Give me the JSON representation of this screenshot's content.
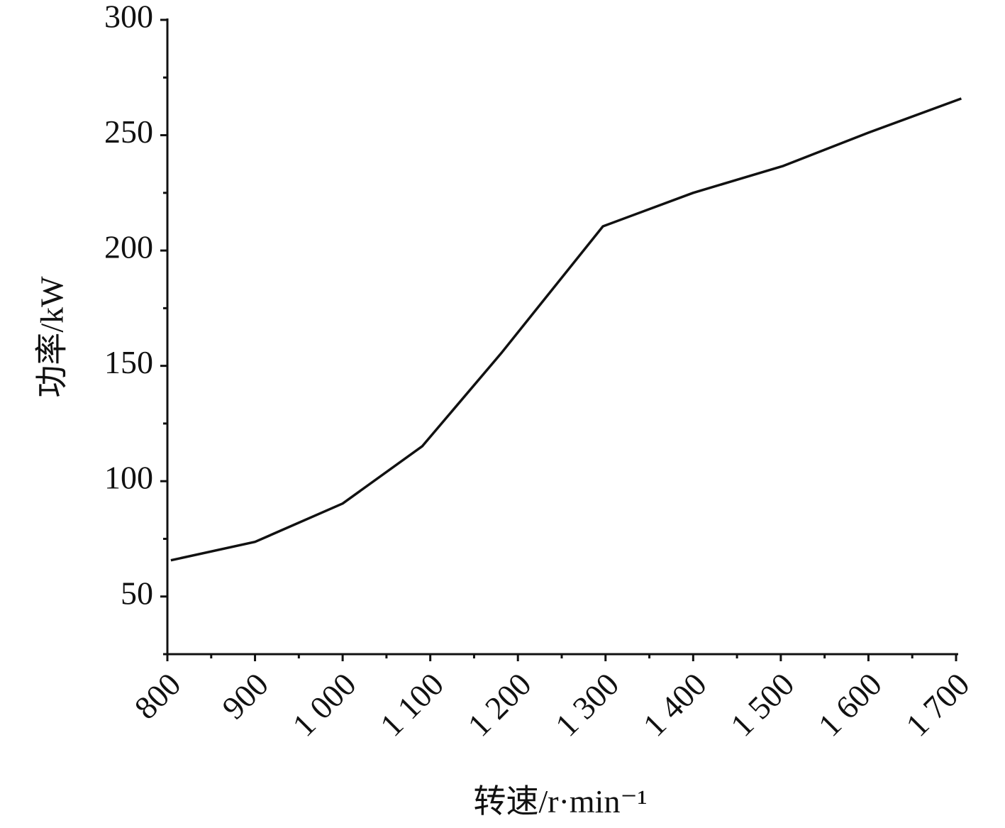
{
  "chart_data": {
    "type": "line",
    "x_label": "转速/r·min⁻¹",
    "y_label": "功率/kW",
    "series": [
      {
        "name": "功率",
        "color": "#111111",
        "x": [
          804,
          900,
          1000,
          1091,
          1181,
          1297,
          1400,
          1503,
          1600,
          1706
        ],
        "values": [
          65.7,
          73.7,
          90.3,
          115.2,
          155.5,
          210.5,
          225,
          236.7,
          251.1,
          265.9
        ]
      }
    ],
    "xlim": [
      800,
      1700
    ],
    "xticks": [
      800,
      900,
      {
        "value": 1000,
        "label": "1 000"
      },
      {
        "value": 1100,
        "label": "1 100"
      },
      {
        "value": 1200,
        "label": "1 200"
      },
      {
        "value": 1300,
        "label": "1 300"
      },
      {
        "value": 1400,
        "label": "1 400"
      },
      {
        "value": 1500,
        "label": "1 500"
      },
      {
        "value": 1600,
        "label": "1 600"
      },
      {
        "value": 1700,
        "label": "1 700"
      }
    ],
    "ylim": [
      25,
      300
    ],
    "yticks": [
      50,
      100,
      150,
      200,
      250,
      300
    ],
    "grid": false
  }
}
